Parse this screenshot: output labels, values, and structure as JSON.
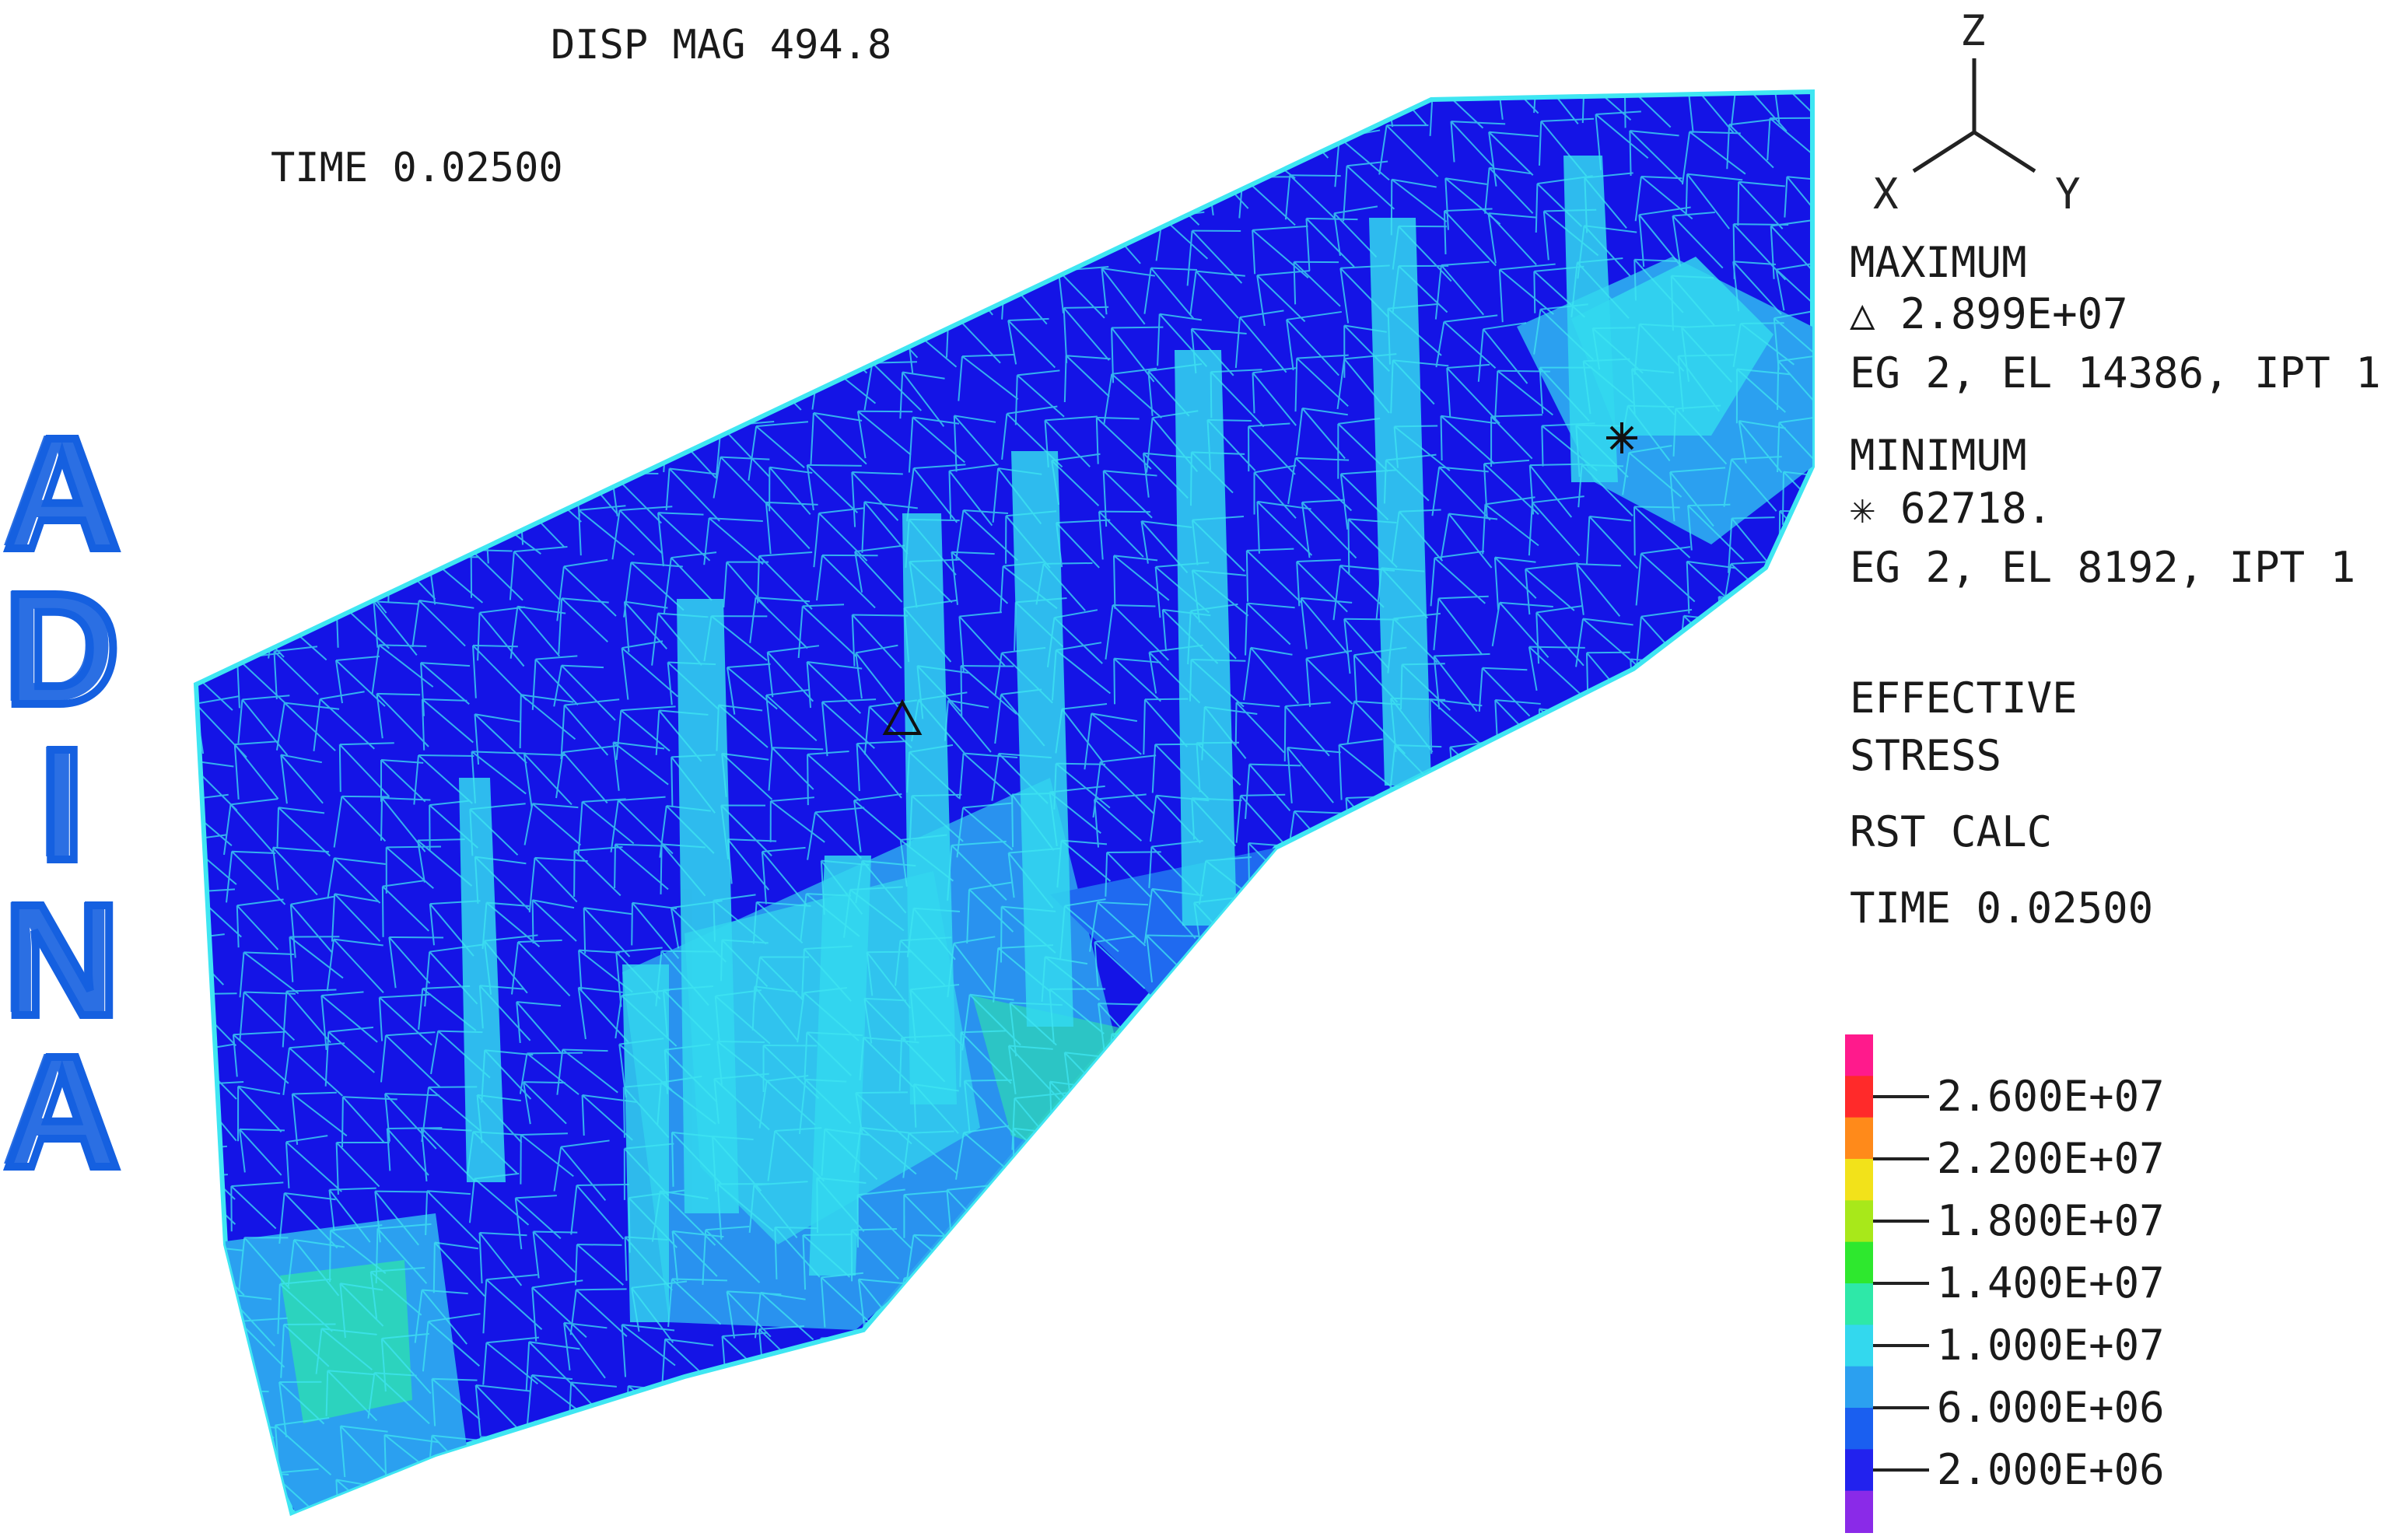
{
  "header": {
    "disp_mag": "DISP MAG 494.8",
    "time": "TIME 0.02500"
  },
  "logo": {
    "text": "ADINA",
    "letters": [
      "A",
      "D",
      "I",
      "N",
      "A"
    ],
    "color": "#1560e0"
  },
  "triad": {
    "z": "Z",
    "x": "X",
    "y": "Y"
  },
  "maximum": {
    "title": "MAXIMUM",
    "marker_icon": "triangle-icon",
    "value": "△ 2.899E+07",
    "location": "EG 2, EL 14386, IPT 1"
  },
  "minimum": {
    "title": "MINIMUM",
    "marker_icon": "asterisk-icon",
    "value": "✳ 62718.",
    "location": "EG 2, EL 8192, IPT 1"
  },
  "result": {
    "line1": "EFFECTIVE",
    "line2": "STRESS",
    "calc": "RST CALC",
    "time": "TIME 0.02500"
  },
  "legend": {
    "labels": [
      "2.600E+07",
      "2.200E+07",
      "1.800E+07",
      "1.400E+07",
      "1.000E+07",
      "6.000E+06",
      "2.000E+06"
    ],
    "colors": [
      "#ff1a8c",
      "#ff2a2a",
      "#ff8a1a",
      "#f2e21a",
      "#a8e81a",
      "#2ee82e",
      "#2ee8a8",
      "#33d8ee",
      "#2ba0f0",
      "#1a5ff0",
      "#2222ee",
      "#8a2ae8"
    ]
  },
  "colors": {
    "mesh_dark": "#1414e6",
    "mesh_mid": "#1f6af0",
    "mesh_light": "#33d9f2",
    "mesh_line": "#3fe6f2"
  }
}
